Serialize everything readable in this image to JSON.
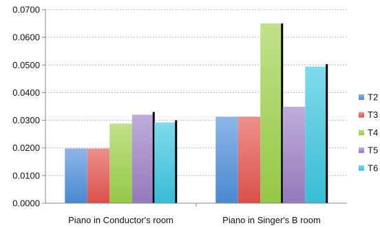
{
  "chart_data": {
    "type": "bar",
    "title": "",
    "xlabel": "",
    "ylabel": "",
    "ylim": [
      0,
      0.07
    ],
    "y_ticks": [
      "0.0000",
      "0.0100",
      "0.0200",
      "0.0300",
      "0.0400",
      "0.0500",
      "0.0600",
      "0.0700"
    ],
    "categories": [
      "Piano in Conductor's room",
      "Piano in Singer's B room"
    ],
    "series": [
      {
        "name": "T2",
        "values": [
          0.0198,
          0.0313
        ],
        "color": "#4f8fdc"
      },
      {
        "name": "T3",
        "values": [
          0.0198,
          0.0313
        ],
        "color": "#e5544e"
      },
      {
        "name": "T4",
        "values": [
          0.0288,
          0.065
        ],
        "color": "#9dd14a"
      },
      {
        "name": "T5",
        "values": [
          0.032,
          0.0349
        ],
        "color": "#9c7fc6"
      },
      {
        "name": "T6",
        "values": [
          0.0292,
          0.0494
        ],
        "color": "#3bc6e0"
      }
    ],
    "error_bars": {
      "color": "#000000",
      "values": [
        [
          0,
          0,
          0,
          0.001,
          0.0008
        ],
        [
          0,
          0,
          0,
          0,
          0.0009
        ]
      ],
      "tops": [
        [
          null,
          null,
          null,
          0.03,
          0.0283
        ],
        [
          null,
          null,
          0.064,
          null,
          0.0485
        ]
      ]
    },
    "grid": "horizontal dashed",
    "legend_position": "right"
  }
}
